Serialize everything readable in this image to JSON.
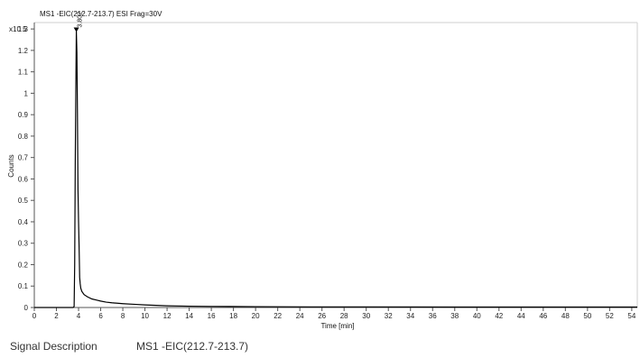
{
  "chart_data": {
    "type": "line",
    "title": "MS1 -EIC(212.7-213.7) ESI Frag=30V",
    "xlabel": "Time [min]",
    "ylabel": "Counts",
    "y_multiplier": "x10 5",
    "xlim": [
      0,
      54.5
    ],
    "ylim": [
      0,
      1.33
    ],
    "x_ticks": [
      0,
      2,
      4,
      6,
      8,
      10,
      12,
      14,
      16,
      18,
      20,
      22,
      24,
      26,
      28,
      30,
      32,
      34,
      36,
      38,
      40,
      42,
      44,
      46,
      48,
      50,
      52,
      54
    ],
    "y_ticks": [
      "0",
      "0.1",
      "0.2",
      "0.3",
      "0.4",
      "0.5",
      "0.6",
      "0.7",
      "0.8",
      "0.9",
      "1",
      "1.1",
      "1.2",
      "1.3"
    ],
    "y_tick_values": [
      0,
      0.1,
      0.2,
      0.3,
      0.4,
      0.5,
      0.6,
      0.7,
      0.8,
      0.9,
      1.0,
      1.1,
      1.2,
      1.3
    ],
    "series": [
      {
        "color": "#000000",
        "x": [
          0,
          3.0,
          3.5,
          3.6,
          3.65,
          3.7,
          3.75,
          3.8,
          3.85,
          3.9,
          3.95,
          4.0,
          4.05,
          4.1,
          4.15,
          4.2,
          4.3,
          4.5,
          4.8,
          5.2,
          5.6,
          6.0,
          6.5,
          7.0,
          8.0,
          9.0,
          10.0,
          11.0,
          12.0,
          14.0,
          16.0,
          20.0,
          25.0,
          30.0,
          40.0,
          54.5
        ],
        "y": [
          0,
          0,
          0,
          0.005,
          0.2,
          0.66,
          1.0,
          1.29,
          1.19,
          0.9,
          0.55,
          0.4,
          0.28,
          0.14,
          0.11,
          0.09,
          0.075,
          0.06,
          0.05,
          0.04,
          0.035,
          0.03,
          0.025,
          0.022,
          0.018,
          0.015,
          0.012,
          0.01,
          0.008,
          0.006,
          0.005,
          0.004,
          0.003,
          0.003,
          0.002,
          0.002
        ]
      }
    ],
    "annotations": [
      {
        "x": 3.802,
        "y": 1.29,
        "text": "3.802"
      }
    ]
  },
  "footer": {
    "label": "Signal Description",
    "value": "MS1 -EIC(212.7-213.7)"
  }
}
